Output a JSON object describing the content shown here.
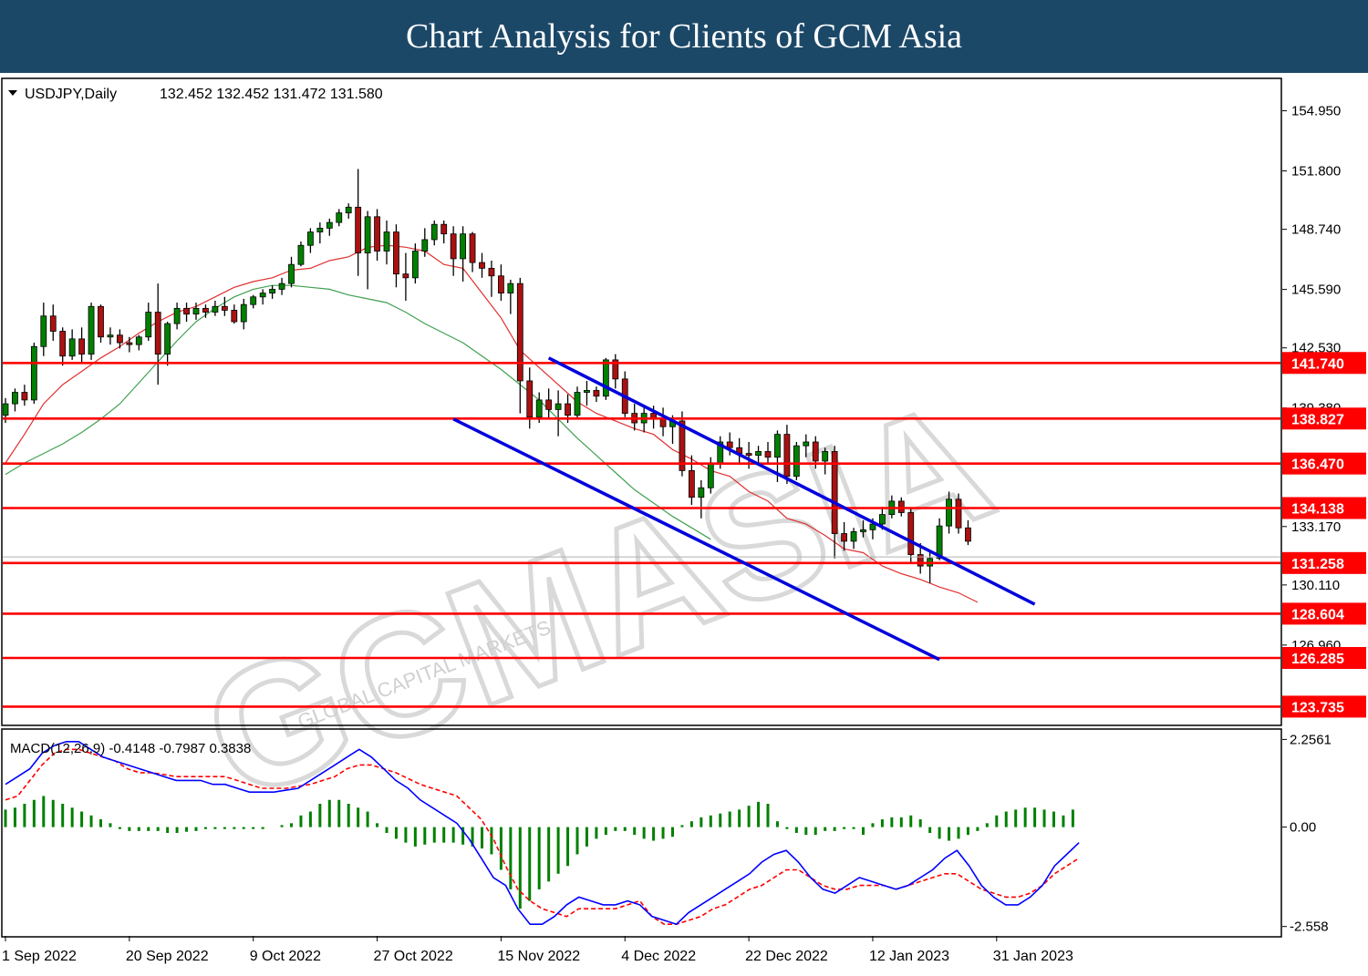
{
  "header": {
    "title": "Chart Analysis for Clients of GCM Asia"
  },
  "watermark": {
    "text": "GCMASIA",
    "subtext": "GLOBAL CAPITAL MARKETS"
  },
  "colors": {
    "bull": "#008000",
    "bear": "#aa1111",
    "ma_fast": "#e03030",
    "ma_slow": "#40a050",
    "channel": "#0000dd",
    "level": "#ff0000",
    "label_bg": "#ff0000",
    "label_text": "#ffffff",
    "macd": "#0000ff",
    "signal": "#ff0000",
    "histogram": "#008000"
  },
  "chart_data": [
    {
      "type": "candlestick",
      "symbol": "USDJPY,Daily",
      "ohlc_header": "132.452 132.452 131.472 131.580",
      "price_axis_ticks": [
        "154.950",
        "151.800",
        "148.740",
        "145.590",
        "142.530",
        "139.380",
        "136.470",
        "133.170",
        "130.110",
        "126.960",
        "123.735"
      ],
      "ylim": [
        122.8,
        156.6
      ],
      "x_tick_labels": [
        {
          "index": 0,
          "label": "1 Sep 2022"
        },
        {
          "index": 13,
          "label": "20 Sep 2022"
        },
        {
          "index": 26,
          "label": "9 Oct 2022"
        },
        {
          "index": 39,
          "label": "27 Oct 2022"
        },
        {
          "index": 52,
          "label": "15 Nov 2022"
        },
        {
          "index": 65,
          "label": "4 Dec 2022"
        },
        {
          "index": 78,
          "label": "22 Dec 2022"
        },
        {
          "index": 91,
          "label": "12 Jan 2023"
        },
        {
          "index": 104,
          "label": "31 Jan 2023"
        }
      ],
      "levels": [
        {
          "price": 141.74,
          "label": "141.740"
        },
        {
          "price": 138.827,
          "label": "138.827"
        },
        {
          "price": 136.47,
          "label": "136.470"
        },
        {
          "price": 134.138,
          "label": "134.138"
        },
        {
          "price": 131.258,
          "label": "131.258"
        },
        {
          "price": 128.604,
          "label": "128.604"
        },
        {
          "price": 126.285,
          "label": "126.285"
        },
        {
          "price": 123.735,
          "label": "123.735"
        }
      ],
      "current_price": 131.58,
      "channel": {
        "upper": [
          {
            "index": 57,
            "price": 142.0
          },
          {
            "index": 108,
            "price": 129.1
          }
        ],
        "lower": [
          {
            "index": 47,
            "price": 138.8
          },
          {
            "index": 98,
            "price": 126.2
          }
        ]
      },
      "candles": [
        [
          139.0,
          139.9,
          138.6,
          139.6
        ],
        [
          139.6,
          140.4,
          139.2,
          140.2
        ],
        [
          140.2,
          140.6,
          139.5,
          139.8
        ],
        [
          139.8,
          142.8,
          139.6,
          142.6
        ],
        [
          142.6,
          144.9,
          142.1,
          144.2
        ],
        [
          144.2,
          144.8,
          142.9,
          143.4
        ],
        [
          143.4,
          143.6,
          141.6,
          142.1
        ],
        [
          142.1,
          143.5,
          141.9,
          143.0
        ],
        [
          143.0,
          143.6,
          141.8,
          142.2
        ],
        [
          142.2,
          144.9,
          141.9,
          144.7
        ],
        [
          144.7,
          144.8,
          142.8,
          143.1
        ],
        [
          143.1,
          143.6,
          142.7,
          143.2
        ],
        [
          143.2,
          143.5,
          142.5,
          142.8
        ],
        [
          142.8,
          143.1,
          142.3,
          142.7
        ],
        [
          142.7,
          143.2,
          142.4,
          143.1
        ],
        [
          143.1,
          144.9,
          142.9,
          144.4
        ],
        [
          144.4,
          145.9,
          140.6,
          142.2
        ],
        [
          142.2,
          143.9,
          141.6,
          143.8
        ],
        [
          143.8,
          144.9,
          143.5,
          144.6
        ],
        [
          144.6,
          144.9,
          143.9,
          144.3
        ],
        [
          144.3,
          144.9,
          144.0,
          144.6
        ],
        [
          144.6,
          144.8,
          144.1,
          144.4
        ],
        [
          144.4,
          145.0,
          144.2,
          144.7
        ],
        [
          144.7,
          145.2,
          144.2,
          144.5
        ],
        [
          144.5,
          144.8,
          143.8,
          143.9
        ],
        [
          143.9,
          145.1,
          143.5,
          144.8
        ],
        [
          144.8,
          145.3,
          144.6,
          145.2
        ],
        [
          145.2,
          145.6,
          144.8,
          145.4
        ],
        [
          145.4,
          145.8,
          145.1,
          145.6
        ],
        [
          145.6,
          146.2,
          145.3,
          145.9
        ],
        [
          145.9,
          147.3,
          145.7,
          146.9
        ],
        [
          146.9,
          148.1,
          146.8,
          147.9
        ],
        [
          147.9,
          148.8,
          147.5,
          148.6
        ],
        [
          148.6,
          149.1,
          148.0,
          148.8
        ],
        [
          148.8,
          149.3,
          148.4,
          149.1
        ],
        [
          149.1,
          149.8,
          148.9,
          149.6
        ],
        [
          149.6,
          150.1,
          149.3,
          149.9
        ],
        [
          149.9,
          151.9,
          146.3,
          147.5
        ],
        [
          147.5,
          149.7,
          145.6,
          149.4
        ],
        [
          149.4,
          149.8,
          147.1,
          147.6
        ],
        [
          147.6,
          149.2,
          146.9,
          148.6
        ],
        [
          148.6,
          149.0,
          145.7,
          146.4
        ],
        [
          146.4,
          147.5,
          145.0,
          146.2
        ],
        [
          146.2,
          148.0,
          145.9,
          147.6
        ],
        [
          147.6,
          148.8,
          147.3,
          148.2
        ],
        [
          148.2,
          149.2,
          147.9,
          149.0
        ],
        [
          149.0,
          149.2,
          148.0,
          148.5
        ],
        [
          148.5,
          148.9,
          146.3,
          147.2
        ],
        [
          147.2,
          148.9,
          146.0,
          148.5
        ],
        [
          148.5,
          148.6,
          146.5,
          147.0
        ],
        [
          147.0,
          147.5,
          146.2,
          146.7
        ],
        [
          146.7,
          147.1,
          145.2,
          146.3
        ],
        [
          146.3,
          146.9,
          145.0,
          145.4
        ],
        [
          145.4,
          146.1,
          144.3,
          145.9
        ],
        [
          145.9,
          146.2,
          139.1,
          140.8
        ],
        [
          140.8,
          141.5,
          138.3,
          138.9
        ],
        [
          138.9,
          140.2,
          138.6,
          139.8
        ],
        [
          139.8,
          140.4,
          138.8,
          139.3
        ],
        [
          139.3,
          140.3,
          137.9,
          139.6
        ],
        [
          139.6,
          140.1,
          138.6,
          139.0
        ],
        [
          139.0,
          140.5,
          138.8,
          140.2
        ],
        [
          140.2,
          140.8,
          139.5,
          140.3
        ],
        [
          140.3,
          140.5,
          139.7,
          140.0
        ],
        [
          140.0,
          142.0,
          139.8,
          141.9
        ],
        [
          141.9,
          142.2,
          140.4,
          140.9
        ],
        [
          140.9,
          141.3,
          138.9,
          139.1
        ],
        [
          139.1,
          139.6,
          138.2,
          138.6
        ],
        [
          138.6,
          139.4,
          138.1,
          139.1
        ],
        [
          139.1,
          139.5,
          138.3,
          138.8
        ],
        [
          138.8,
          139.4,
          137.9,
          138.4
        ],
        [
          138.4,
          139.0,
          137.5,
          138.7
        ],
        [
          138.7,
          139.2,
          135.8,
          136.1
        ],
        [
          136.1,
          136.9,
          134.3,
          134.7
        ],
        [
          134.7,
          135.6,
          133.6,
          135.2
        ],
        [
          135.2,
          136.8,
          134.9,
          136.5
        ],
        [
          136.5,
          137.9,
          136.2,
          137.6
        ],
        [
          137.6,
          138.1,
          136.9,
          137.3
        ],
        [
          137.3,
          137.8,
          136.4,
          137.0
        ],
        [
          137.0,
          137.6,
          136.2,
          136.9
        ],
        [
          136.9,
          137.4,
          136.5,
          137.1
        ],
        [
          137.1,
          137.6,
          136.5,
          136.8
        ],
        [
          136.8,
          138.2,
          135.5,
          138.0
        ],
        [
          138.0,
          138.5,
          135.4,
          135.8
        ],
        [
          135.8,
          137.6,
          135.6,
          137.4
        ],
        [
          137.4,
          138.0,
          136.8,
          137.6
        ],
        [
          137.6,
          137.9,
          136.2,
          136.6
        ],
        [
          136.6,
          137.3,
          135.9,
          137.1
        ],
        [
          137.1,
          137.4,
          131.5,
          132.8
        ],
        [
          132.8,
          133.4,
          131.9,
          132.4
        ],
        [
          132.4,
          133.1,
          132.0,
          132.9
        ],
        [
          132.9,
          133.5,
          132.6,
          133.0
        ],
        [
          133.0,
          133.6,
          132.5,
          133.3
        ],
        [
          133.3,
          134.2,
          133.0,
          133.8
        ],
        [
          133.8,
          134.8,
          133.6,
          134.5
        ],
        [
          134.5,
          134.7,
          133.7,
          133.9
        ],
        [
          133.9,
          134.1,
          131.3,
          131.7
        ],
        [
          131.7,
          132.3,
          130.7,
          131.1
        ],
        [
          131.1,
          131.9,
          130.2,
          131.5
        ],
        [
          131.5,
          133.6,
          131.4,
          133.2
        ],
        [
          133.2,
          135.0,
          132.8,
          134.6
        ],
        [
          134.6,
          134.9,
          132.8,
          133.1
        ],
        [
          133.1,
          133.5,
          132.2,
          132.4
        ]
      ],
      "moving_averages": {
        "fast": [
          136.5,
          138.0,
          139.6,
          140.6,
          141.3,
          142.0,
          142.6,
          143.3,
          143.9,
          144.4,
          144.7,
          145.2,
          145.7,
          146.0,
          146.2,
          146.6,
          146.7,
          147.1,
          147.3,
          147.8,
          147.9,
          147.8,
          147.6,
          146.9,
          146.7,
          145.4,
          144.1,
          142.4,
          141.5,
          140.6,
          139.7,
          139.1,
          138.7,
          138.3,
          138.0,
          137.2,
          136.7,
          136.1,
          135.8,
          135.0,
          134.5,
          133.6,
          133.3,
          132.7,
          132.0,
          131.8,
          131.1,
          130.7,
          130.4,
          130.0,
          129.7,
          129.2
        ],
        "slow": [
          135.9,
          136.5,
          137.0,
          137.5,
          138.1,
          138.8,
          139.6,
          140.7,
          141.8,
          142.9,
          143.9,
          144.6,
          145.2,
          145.6,
          145.8,
          145.8,
          145.7,
          145.6,
          145.3,
          145.1,
          144.9,
          144.4,
          143.8,
          143.3,
          142.8,
          142.1,
          141.4,
          140.6,
          139.8,
          138.8,
          137.8,
          136.9,
          136.0,
          135.1,
          134.4,
          133.7,
          133.1,
          132.5
        ]
      }
    },
    {
      "type": "macd",
      "label": "MACD(12,26,9) -0.4148 -0.7987 0.3838",
      "axis_ticks": [
        "2.2561",
        "0.00",
        "-2.558"
      ],
      "ylim": [
        -2.8,
        2.5
      ],
      "histogram": [
        0.45,
        0.5,
        0.6,
        0.7,
        0.8,
        0.7,
        0.6,
        0.5,
        0.4,
        0.3,
        0.2,
        0.1,
        -0.05,
        -0.1,
        -0.1,
        -0.1,
        -0.1,
        -0.15,
        -0.15,
        -0.12,
        -0.1,
        -0.05,
        -0.05,
        -0.05,
        -0.05,
        -0.05,
        -0.05,
        -0.05,
        0.0,
        0.05,
        0.1,
        0.3,
        0.4,
        0.6,
        0.7,
        0.7,
        0.6,
        0.5,
        0.4,
        0.1,
        -0.15,
        -0.3,
        -0.4,
        -0.5,
        -0.45,
        -0.4,
        -0.4,
        -0.4,
        -0.45,
        -0.5,
        -0.55,
        -0.7,
        -1.1,
        -1.6,
        -2.1,
        -1.9,
        -1.6,
        -1.4,
        -1.2,
        -1.0,
        -0.7,
        -0.5,
        -0.3,
        -0.2,
        -0.1,
        -0.1,
        -0.2,
        -0.3,
        -0.35,
        -0.3,
        -0.25,
        0.05,
        0.15,
        0.25,
        0.3,
        0.35,
        0.4,
        0.45,
        0.55,
        0.65,
        0.6,
        0.15,
        -0.05,
        -0.15,
        -0.2,
        -0.2,
        -0.1,
        -0.1,
        -0.05,
        -0.05,
        -0.2,
        0.1,
        0.2,
        0.25,
        0.25,
        0.3,
        0.2,
        -0.15,
        -0.3,
        -0.35,
        -0.3,
        -0.2,
        -0.1,
        0.1,
        0.3,
        0.4,
        0.45,
        0.5,
        0.5,
        0.45,
        0.4,
        0.3,
        0.45
      ],
      "macd": [
        1.1,
        1.3,
        1.5,
        1.9,
        2.1,
        2.2,
        2.2,
        2.0,
        1.8,
        1.7,
        1.6,
        1.5,
        1.4,
        1.3,
        1.2,
        1.2,
        1.2,
        1.1,
        1.1,
        1.0,
        0.9,
        0.9,
        0.9,
        0.95,
        1.0,
        1.2,
        1.4,
        1.6,
        1.8,
        2.0,
        1.8,
        1.5,
        1.2,
        1.0,
        0.7,
        0.5,
        0.3,
        0.1,
        -0.3,
        -0.8,
        -1.3,
        -1.5,
        -2.1,
        -2.5,
        -2.5,
        -2.3,
        -2.0,
        -1.8,
        -1.9,
        -2.0,
        -2.0,
        -1.9,
        -2.0,
        -2.3,
        -2.4,
        -2.5,
        -2.2,
        -2.0,
        -1.8,
        -1.6,
        -1.4,
        -1.2,
        -0.9,
        -0.7,
        -0.6,
        -0.9,
        -1.3,
        -1.6,
        -1.7,
        -1.5,
        -1.3,
        -1.4,
        -1.5,
        -1.6,
        -1.5,
        -1.3,
        -1.1,
        -0.8,
        -0.6,
        -1.0,
        -1.5,
        -1.8,
        -2.0,
        -2.0,
        -1.8,
        -1.5,
        -1.0,
        -0.7,
        -0.4
      ],
      "signal": [
        0.7,
        0.8,
        1.2,
        1.6,
        1.9,
        2.0,
        2.0,
        1.9,
        1.8,
        1.7,
        1.5,
        1.4,
        1.4,
        1.35,
        1.3,
        1.3,
        1.3,
        1.3,
        1.3,
        1.2,
        1.1,
        1.0,
        1.0,
        1.0,
        1.05,
        1.1,
        1.2,
        1.3,
        1.5,
        1.6,
        1.6,
        1.5,
        1.4,
        1.25,
        1.1,
        1.0,
        0.9,
        0.8,
        0.5,
        0.2,
        -0.3,
        -1.0,
        -1.6,
        -1.9,
        -2.1,
        -2.2,
        -2.3,
        -2.1,
        -2.1,
        -2.1,
        -2.1,
        -2.0,
        -1.9,
        -2.3,
        -2.5,
        -2.5,
        -2.4,
        -2.3,
        -2.1,
        -2.0,
        -1.8,
        -1.6,
        -1.5,
        -1.3,
        -1.1,
        -1.1,
        -1.3,
        -1.5,
        -1.6,
        -1.6,
        -1.5,
        -1.5,
        -1.5,
        -1.6,
        -1.5,
        -1.4,
        -1.3,
        -1.2,
        -1.2,
        -1.4,
        -1.6,
        -1.7,
        -1.8,
        -1.8,
        -1.7,
        -1.5,
        -1.2,
        -1.0,
        -0.8
      ]
    }
  ]
}
